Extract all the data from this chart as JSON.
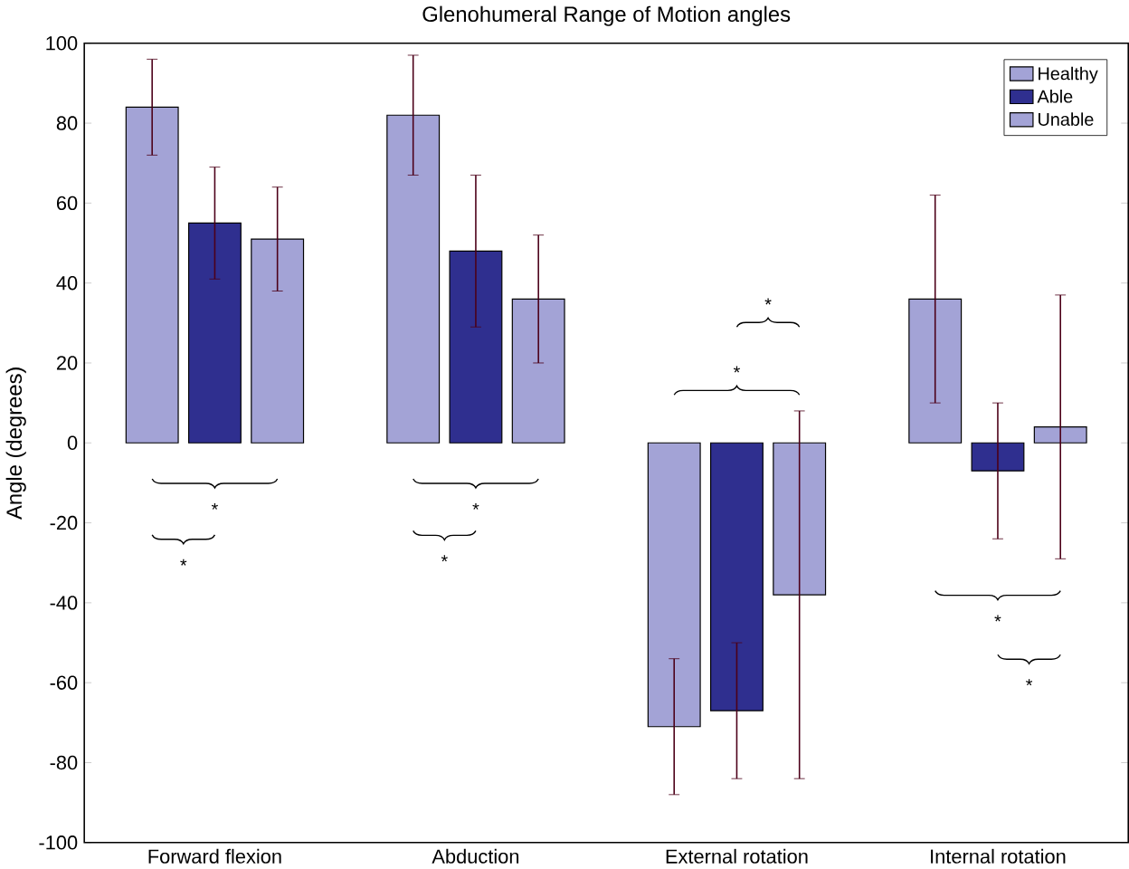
{
  "chart_data": {
    "type": "bar",
    "title": "Glenohumeral Range of Motion angles",
    "ylabel": "Angle (degrees)",
    "categories": [
      "Forward flexion",
      "Abduction",
      "External rotation",
      "Internal rotation"
    ],
    "series": [
      {
        "name": "Healthy",
        "color": "#a3a3d6",
        "values": [
          84,
          82,
          -71,
          36
        ],
        "errors": [
          12,
          15,
          17,
          26
        ]
      },
      {
        "name": "Able",
        "color": "#2f2f8f",
        "values": [
          55,
          48,
          -67,
          -7
        ],
        "errors": [
          14,
          19,
          17,
          17
        ]
      },
      {
        "name": "Unable",
        "color": "#a3a3d6",
        "values": [
          51,
          36,
          -38,
          4
        ],
        "errors": [
          13,
          16,
          46,
          33
        ]
      }
    ],
    "ylim": [
      -100,
      100
    ],
    "yticks": [
      -100,
      -80,
      -60,
      -40,
      -20,
      0,
      20,
      40,
      60,
      80,
      100
    ],
    "legend": "top right",
    "annotations": [
      "*",
      "*",
      "*",
      "*",
      "*",
      "*",
      "*",
      "*"
    ]
  }
}
